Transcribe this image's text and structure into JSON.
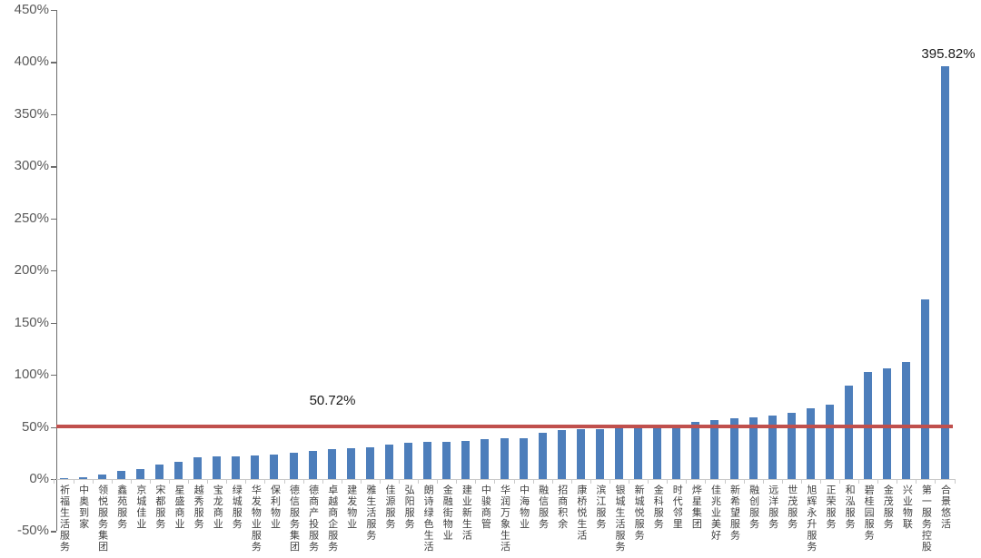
{
  "chart_data": {
    "type": "bar",
    "title": "",
    "categories": [
      "祈福生活服务",
      "中奥到家",
      "领悦服务集团",
      "鑫苑服务",
      "京城佳业",
      "宋都服务",
      "星盛商业",
      "越秀服务",
      "宝龙商业",
      "绿城服务",
      "华发物业服务",
      "保利物业",
      "德信服务集团",
      "德商产投服务",
      "卓越商企服务",
      "建发物业",
      "雅生活服务",
      "佳源服务",
      "弘阳服务",
      "朗诗绿色生活",
      "金融街物业",
      "建业新生活",
      "中骏商管",
      "华润万象生活",
      "中海物业",
      "融信服务",
      "招商积余",
      "康桥悦生活",
      "滨江服务",
      "银城生活服务",
      "新城悦服务",
      "金科服务",
      "时代邻里",
      "烨星集团",
      "佳兆业美好",
      "新希望服务",
      "融创服务",
      "远洋服务",
      "世茂服务",
      "旭辉永升服务",
      "正荣服务",
      "和泓服务",
      "碧桂园服务",
      "金茂服务",
      "兴业物联",
      "第一服务控股",
      "合景悠活"
    ],
    "values": [
      0.5,
      2,
      4.5,
      8,
      10,
      13.5,
      16.5,
      20.5,
      21.5,
      22,
      22.5,
      23.5,
      25.5,
      27,
      29,
      29.5,
      30.5,
      33,
      34.5,
      35.5,
      36,
      36.5,
      38.5,
      39,
      39.5,
      44,
      47,
      47.5,
      48,
      48.5,
      49,
      49.5,
      50.5,
      55,
      56.5,
      58,
      59,
      61,
      63.5,
      68,
      71.5,
      90,
      103,
      106,
      112,
      172,
      395.82
    ],
    "unit": "%",
    "y_axis": {
      "min": -50,
      "max": 450,
      "tick_step": 50,
      "tick_values": [
        450,
        400,
        350,
        300,
        250,
        200,
        150,
        100,
        50,
        0,
        -50
      ],
      "tick_labels": [
        "450%",
        "400%",
        "350%",
        "300%",
        "250%",
        "200%",
        "150%",
        "100%",
        "50%",
        "0%",
        "-50%"
      ],
      "format": "percent"
    },
    "x_axis": {
      "label_rotation": "vertical-stacked"
    },
    "reference_line": {
      "value": 50.72,
      "label": "50.72%",
      "color": "#C0504D"
    },
    "max_label": {
      "category": "合景悠活",
      "value": 395.82,
      "text": "395.82%"
    },
    "grid": false,
    "legend": false,
    "colors": {
      "bar": "#4D7EBB",
      "reference_line": "#C0504D",
      "y_axis": "#6E6E6E",
      "x_axis": "#C9C9C9",
      "tick_text": "#595959",
      "category_text": "#3F3F3F",
      "annotation_text": "#1A1A1A",
      "background": "#FFFFFF"
    }
  }
}
